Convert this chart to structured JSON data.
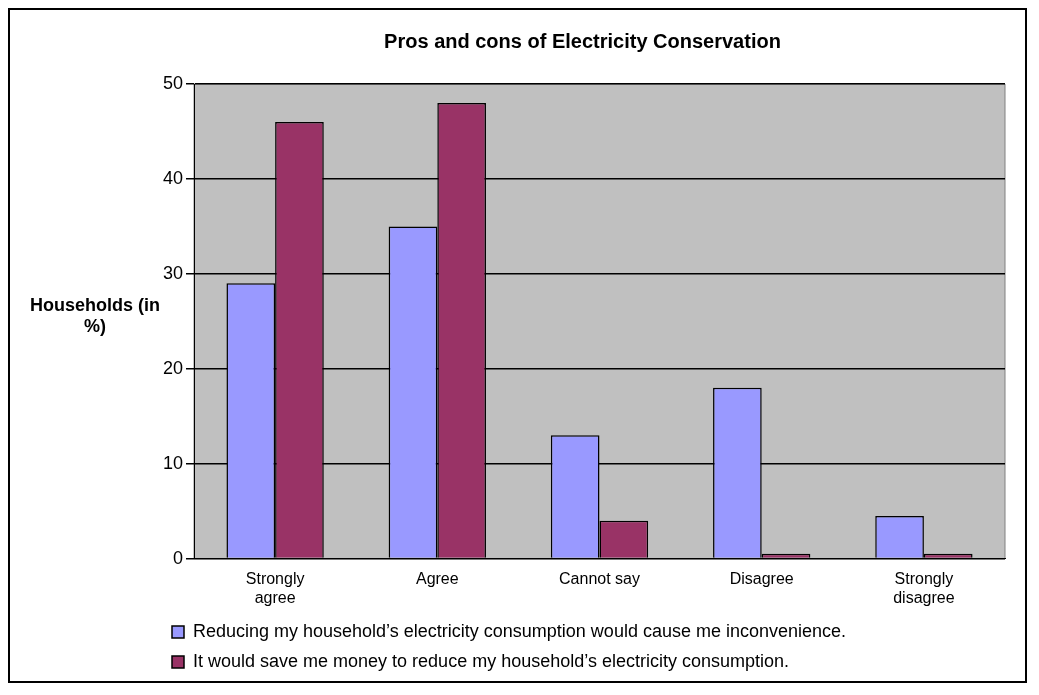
{
  "chart_data": {
    "type": "bar",
    "title": "Pros and cons of Electricity Conservation",
    "ylabel": "Households (in %)",
    "categories": [
      "Strongly agree",
      "Agree",
      "Cannot say",
      "Disagree",
      "Strongly disagree"
    ],
    "series": [
      {
        "name": "Reducing my household’s electricity consumption would cause me inconvenience.",
        "color": "#9999ff",
        "values": [
          29,
          35,
          13,
          18,
          4.5
        ]
      },
      {
        "name": "It would save me money to reduce my household’s electricity consumption.",
        "color": "#993366",
        "values": [
          46,
          48,
          4,
          0.5,
          0.5
        ]
      }
    ],
    "ylim": [
      0,
      50
    ],
    "yticks": [
      0,
      10,
      20,
      30,
      40,
      50
    ],
    "grid": "y",
    "legend": "bottom"
  }
}
